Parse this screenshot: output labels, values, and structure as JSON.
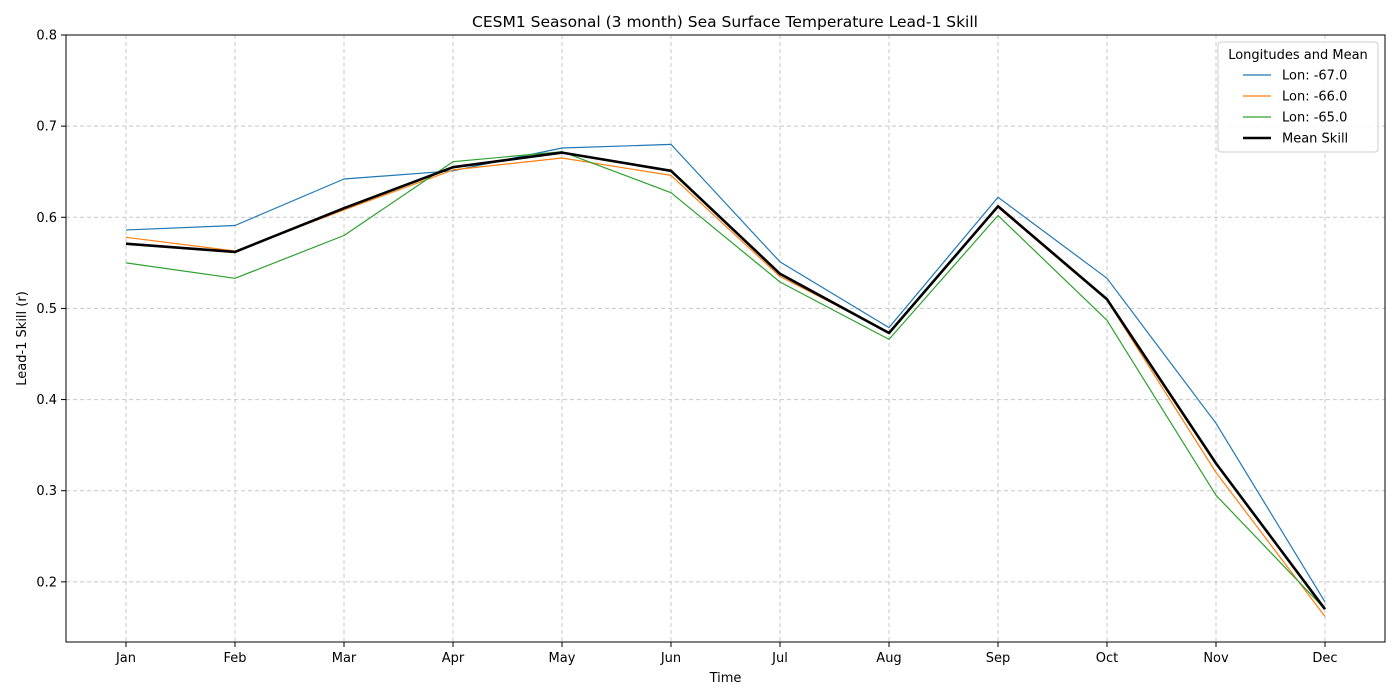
{
  "chart_data": {
    "type": "line",
    "title": "CESM1 Seasonal (3 month) Sea Surface Temperature Lead-1 Skill",
    "xlabel": "Time",
    "ylabel": "Lead-1 Skill (r)",
    "categories": [
      "Jan",
      "Feb",
      "Mar",
      "Apr",
      "May",
      "Jun",
      "Jul",
      "Aug",
      "Sep",
      "Oct",
      "Nov",
      "Dec"
    ],
    "ylim": [
      0.134,
      0.8
    ],
    "yticks": [
      "0.2",
      "0.3",
      "0.4",
      "0.5",
      "0.6",
      "0.7",
      "0.8"
    ],
    "grid": true,
    "legend": {
      "title": "Longitudes and Mean",
      "placement": "top-right"
    },
    "series": [
      {
        "name": "Lon: -67.0",
        "color": "#1f77b4",
        "values": [
          0.586,
          0.591,
          0.642,
          0.651,
          0.676,
          0.68,
          0.551,
          0.479,
          0.622,
          0.533,
          0.374,
          0.178
        ]
      },
      {
        "name": "Lon: -66.0",
        "color": "#ff7f0e",
        "values": [
          0.578,
          0.563,
          0.608,
          0.652,
          0.665,
          0.646,
          0.535,
          0.474,
          0.611,
          0.509,
          0.32,
          0.162
        ]
      },
      {
        "name": "Lon: -65.0",
        "color": "#2ca02c",
        "values": [
          0.55,
          0.533,
          0.58,
          0.661,
          0.672,
          0.627,
          0.529,
          0.466,
          0.602,
          0.487,
          0.295,
          0.17
        ]
      },
      {
        "name": "Mean Skill",
        "color": "#000000",
        "bold": true,
        "values": [
          0.571,
          0.562,
          0.61,
          0.655,
          0.671,
          0.651,
          0.538,
          0.473,
          0.612,
          0.51,
          0.33,
          0.17
        ]
      }
    ]
  }
}
